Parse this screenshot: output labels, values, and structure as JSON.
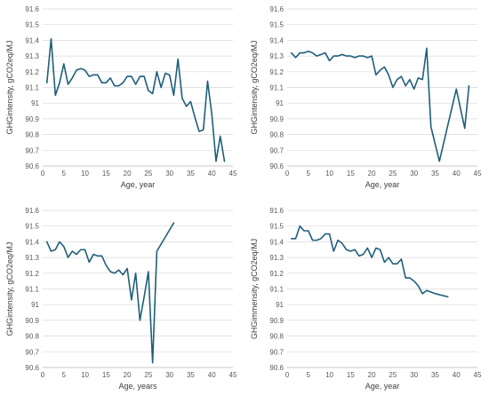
{
  "style": {
    "line_color": "#1f5f7a",
    "grid_color": "#d9d9d9"
  },
  "chart_data": [
    {
      "type": "line",
      "title": "",
      "xlabel": "Age, year",
      "ylabel": "GHGintensity, gCO2eq/MJ",
      "xlim": [
        0,
        45
      ],
      "ylim": [
        90.6,
        91.6
      ],
      "xticks": [
        0,
        5,
        10,
        15,
        20,
        25,
        30,
        35,
        40,
        45
      ],
      "yticks": [
        90.6,
        90.7,
        90.8,
        90.9,
        91.0,
        91.1,
        91.2,
        91.3,
        91.4,
        91.5,
        91.6
      ],
      "ytick_labels": [
        "90.6",
        "90.7",
        "90.8",
        "90.9",
        "91",
        "91.1",
        "91.2",
        "91.3",
        "91.4",
        "91.5",
        "91.6"
      ],
      "grid": true,
      "series": [
        {
          "x": [
            1,
            2,
            3,
            4,
            5,
            6,
            7,
            8,
            9,
            10,
            11,
            12,
            13,
            14,
            15,
            16,
            17,
            18,
            19,
            20,
            21,
            22,
            23,
            24,
            25,
            26,
            27,
            28,
            29,
            30,
            31,
            32,
            33,
            34,
            35,
            36,
            37,
            38,
            39,
            40,
            41,
            42,
            43
          ],
          "y": [
            91.13,
            91.41,
            91.05,
            91.13,
            91.25,
            91.12,
            91.16,
            91.21,
            91.22,
            91.21,
            91.17,
            91.18,
            91.18,
            91.13,
            91.13,
            91.16,
            91.11,
            91.11,
            91.13,
            91.17,
            91.17,
            91.12,
            91.17,
            91.17,
            91.08,
            91.06,
            91.2,
            91.1,
            91.19,
            91.18,
            91.05,
            91.28,
            91.03,
            90.98,
            91.01,
            90.91,
            90.82,
            90.83,
            91.14,
            90.93,
            90.63,
            90.79,
            90.63
          ]
        }
      ]
    },
    {
      "type": "line",
      "title": "",
      "xlabel": "Age, year",
      "ylabel": "GHGintensity, gCO2eq/MJ",
      "xlim": [
        0,
        45
      ],
      "ylim": [
        90.6,
        91.6
      ],
      "xticks": [
        0,
        5,
        10,
        15,
        20,
        25,
        30,
        35,
        40,
        45
      ],
      "yticks": [
        90.6,
        90.7,
        90.8,
        90.9,
        91.0,
        91.1,
        91.2,
        91.3,
        91.4,
        91.5,
        91.6
      ],
      "ytick_labels": [
        "90.6",
        "90.7",
        "90.8",
        "90.9",
        "91",
        "91.1",
        "91.2",
        "91.3",
        "91.4",
        "91.5",
        "91.6"
      ],
      "grid": true,
      "series": [
        {
          "x": [
            1,
            2,
            3,
            4,
            5,
            6,
            7,
            8,
            9,
            10,
            11,
            12,
            13,
            14,
            15,
            16,
            17,
            18,
            19,
            20,
            21,
            22,
            23,
            24,
            25,
            26,
            27,
            28,
            29,
            30,
            31,
            32,
            33,
            34,
            36,
            40,
            42,
            43
          ],
          "y": [
            91.32,
            91.29,
            91.32,
            91.32,
            91.33,
            91.32,
            91.3,
            91.31,
            91.32,
            91.27,
            91.3,
            91.3,
            91.31,
            91.3,
            91.3,
            91.29,
            91.3,
            91.3,
            91.29,
            91.3,
            91.18,
            91.21,
            91.23,
            91.18,
            91.1,
            91.15,
            91.17,
            91.11,
            91.15,
            91.09,
            91.16,
            91.15,
            91.35,
            90.85,
            90.63,
            91.09,
            90.84,
            91.11
          ]
        }
      ]
    },
    {
      "type": "line",
      "title": "",
      "xlabel": "Age, years",
      "ylabel": "GHGintensity, gCO2eq/MJ",
      "xlim": [
        0,
        45
      ],
      "ylim": [
        90.6,
        91.6
      ],
      "xticks": [
        0,
        5,
        10,
        15,
        20,
        25,
        30,
        35,
        40,
        45
      ],
      "yticks": [
        90.6,
        90.7,
        90.8,
        90.9,
        91.0,
        91.1,
        91.2,
        91.3,
        91.4,
        91.5,
        91.6
      ],
      "ytick_labels": [
        "90.6",
        "90.7",
        "90.8",
        "90.9",
        "91",
        "91.1",
        "91.2",
        "91.3",
        "91.4",
        "91.5",
        "91.6"
      ],
      "grid": true,
      "series": [
        {
          "x": [
            1,
            2,
            3,
            4,
            5,
            6,
            7,
            8,
            9,
            10,
            11,
            12,
            13,
            14,
            15,
            16,
            17,
            18,
            19,
            20,
            21,
            22,
            23,
            24,
            25,
            26,
            27,
            31
          ],
          "y": [
            91.4,
            91.34,
            91.35,
            91.4,
            91.37,
            91.3,
            91.34,
            91.32,
            91.35,
            91.35,
            91.27,
            91.32,
            91.31,
            91.31,
            91.25,
            91.21,
            91.2,
            91.22,
            91.19,
            91.23,
            91.03,
            91.2,
            90.9,
            91.05,
            91.21,
            90.63,
            91.34,
            91.52
          ]
        }
      ]
    },
    {
      "type": "line",
      "title": "",
      "xlabel": "Age, year",
      "ylabel": "GHGimmensity, gCO2eq/MJ",
      "xlim": [
        0,
        45
      ],
      "ylim": [
        90.6,
        91.6
      ],
      "xticks": [
        0,
        5,
        10,
        15,
        20,
        25,
        30,
        35,
        40,
        45
      ],
      "yticks": [
        90.6,
        90.7,
        90.8,
        90.9,
        91.0,
        91.1,
        91.2,
        91.3,
        91.4,
        91.5,
        91.6
      ],
      "ytick_labels": [
        "90.6",
        "90.7",
        "90.8",
        "90.9",
        "91",
        "91.1",
        "91.2",
        "91.3",
        "91.4",
        "91.5",
        "91.6"
      ],
      "grid": true,
      "series": [
        {
          "x": [
            1,
            2,
            3,
            4,
            5,
            6,
            7,
            8,
            9,
            10,
            11,
            12,
            13,
            14,
            15,
            16,
            17,
            18,
            19,
            20,
            21,
            22,
            23,
            24,
            25,
            26,
            27,
            28,
            29,
            30,
            31,
            32,
            33,
            34,
            35,
            38
          ],
          "y": [
            91.42,
            91.42,
            91.5,
            91.47,
            91.47,
            91.41,
            91.41,
            91.42,
            91.45,
            91.45,
            91.34,
            91.41,
            91.39,
            91.35,
            91.34,
            91.35,
            91.31,
            91.32,
            91.36,
            91.3,
            91.36,
            91.35,
            91.27,
            91.3,
            91.26,
            91.26,
            91.29,
            91.17,
            91.17,
            91.15,
            91.12,
            91.07,
            91.09,
            91.08,
            91.07,
            91.05
          ]
        }
      ]
    }
  ]
}
